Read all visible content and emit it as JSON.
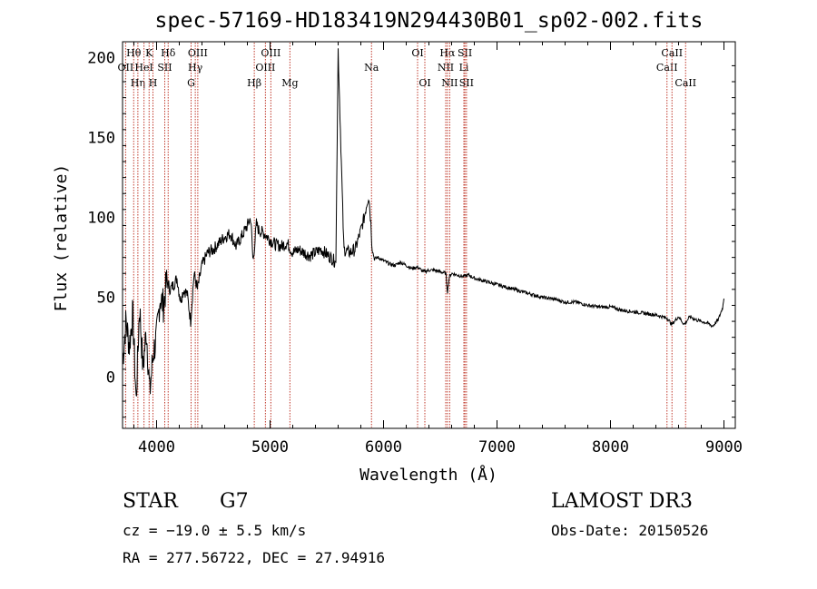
{
  "header": {
    "title": "spec-57169-HD183419N294430B01_sp02-002.fits"
  },
  "chart_data": {
    "type": "line",
    "title": "spec-57169-HD183419N294430B01_sp02-002.fits",
    "xlabel": "Wavelength (Å)",
    "ylabel": "Flux (relative)",
    "xlim": [
      3700,
      9100
    ],
    "ylim": [
      -32,
      210
    ],
    "xticks": [
      4000,
      5000,
      6000,
      7000,
      8000,
      9000
    ],
    "yticks": [
      0,
      50,
      100,
      150,
      200
    ],
    "grid": false,
    "series": [
      {
        "name": "spectrum",
        "x": [
          3700,
          3730,
          3760,
          3790,
          3820,
          3850,
          3880,
          3910,
          3940,
          3970,
          4000,
          4030,
          4060,
          4090,
          4120,
          4150,
          4180,
          4210,
          4240,
          4270,
          4300,
          4330,
          4360,
          4400,
          4450,
          4500,
          4550,
          4600,
          4650,
          4700,
          4750,
          4800,
          4830,
          4850,
          4880,
          4900,
          4950,
          5000,
          5050,
          5100,
          5150,
          5200,
          5250,
          5300,
          5350,
          5400,
          5450,
          5500,
          5550,
          5580,
          5600,
          5650,
          5700,
          5750,
          5800,
          5830,
          5850,
          5870,
          5890,
          5900,
          5920,
          5950,
          6000,
          6050,
          6100,
          6150,
          6200,
          6250,
          6300,
          6350,
          6400,
          6450,
          6500,
          6550,
          6563,
          6580,
          6600,
          6650,
          6700,
          6750,
          6800,
          6900,
          7000,
          7100,
          7200,
          7300,
          7400,
          7500,
          7600,
          7700,
          7800,
          7900,
          8000,
          8100,
          8200,
          8300,
          8400,
          8500,
          8540,
          8600,
          8650,
          8700,
          8750,
          8800,
          8850,
          8900,
          8950,
          8990,
          9000
        ],
        "values": [
          10,
          35,
          20,
          40,
          -15,
          45,
          5,
          30,
          -10,
          15,
          25,
          50,
          45,
          60,
          55,
          58,
          62,
          48,
          55,
          52,
          35,
          65,
          55,
          70,
          78,
          80,
          84,
          88,
          90,
          82,
          88,
          95,
          100,
          72,
          96,
          92,
          90,
          86,
          83,
          82,
          84,
          78,
          80,
          78,
          76,
          78,
          80,
          77,
          74,
          72,
          205,
          80,
          78,
          80,
          92,
          100,
          108,
          114,
          95,
          80,
          74,
          75,
          73,
          71,
          70,
          72,
          70,
          68,
          69,
          66,
          67,
          67,
          66,
          65,
          53,
          63,
          65,
          64,
          63,
          64,
          62,
          60,
          58,
          56,
          54,
          52,
          50,
          49,
          47,
          47,
          45,
          44,
          44,
          42,
          41,
          40,
          39,
          37,
          33,
          38,
          33,
          38,
          36,
          35,
          34,
          32,
          36,
          44,
          50
        ]
      }
    ],
    "lines": [
      {
        "name": "OII",
        "wave": 3727,
        "label": "OII",
        "row": 1
      },
      {
        "name": "Hθ",
        "wave": 3798,
        "label": "Hθ",
        "row": 0
      },
      {
        "name": "Hη",
        "wave": 3835,
        "label": "Hη",
        "row": 2
      },
      {
        "name": "HeI",
        "wave": 3889,
        "label": "HeI",
        "row": 1
      },
      {
        "name": "K",
        "wave": 3934,
        "label": "K",
        "row": 0
      },
      {
        "name": "H",
        "wave": 3968,
        "label": "H",
        "row": 2
      },
      {
        "name": "SII",
        "wave": 4072,
        "label": "SII",
        "row": 1
      },
      {
        "name": "Hδ",
        "wave": 4102,
        "label": "Hδ",
        "row": 0
      },
      {
        "name": "G",
        "wave": 4304,
        "label": "G",
        "row": 2
      },
      {
        "name": "Hγ",
        "wave": 4341,
        "label": "Hγ",
        "row": 1
      },
      {
        "name": "OIII",
        "wave": 4363,
        "label": "OIII",
        "row": 0
      },
      {
        "name": "Hβ",
        "wave": 4861,
        "label": "Hβ",
        "row": 2
      },
      {
        "name": "OIII",
        "wave": 4959,
        "label": "OIII",
        "row": 1
      },
      {
        "name": "OIII",
        "wave": 5007,
        "label": "OIII",
        "row": 0
      },
      {
        "name": "Mg",
        "wave": 5175,
        "label": "Mg",
        "row": 2
      },
      {
        "name": "Na",
        "wave": 5894,
        "label": "Na",
        "row": 1
      },
      {
        "name": "OI",
        "wave": 6300,
        "label": "OI",
        "row": 0
      },
      {
        "name": "OI",
        "wave": 6364,
        "label": "OI",
        "row": 2
      },
      {
        "name": "NII",
        "wave": 6548,
        "label": "NII",
        "row": 1
      },
      {
        "name": "Hα",
        "wave": 6563,
        "label": "Hα",
        "row": 0
      },
      {
        "name": "NII",
        "wave": 6583,
        "label": "NII",
        "row": 2
      },
      {
        "name": "SII",
        "wave": 6717,
        "label": "SII",
        "row": 0
      },
      {
        "name": "Li",
        "wave": 6708,
        "label": "Li",
        "row": 1
      },
      {
        "name": "SII",
        "wave": 6731,
        "label": "SII",
        "row": 2
      },
      {
        "name": "CaII",
        "wave": 8498,
        "label": "CaII",
        "row": 1
      },
      {
        "name": "CaII",
        "wave": 8542,
        "label": "CaII",
        "row": 0
      },
      {
        "name": "CaII",
        "wave": 8662,
        "label": "CaII",
        "row": 2
      }
    ]
  },
  "info": {
    "object_class": "STAR",
    "subclass": "G7",
    "survey": "LAMOST DR3",
    "redshift": "cz = −19.0 ± 5.5 km/s",
    "obs_date": "Obs-Date: 20150526",
    "coords": "RA = 277.56722, DEC =  27.94916"
  },
  "colors": {
    "line": "#000000",
    "marker": "#c0392b",
    "background": "#ffffff"
  }
}
